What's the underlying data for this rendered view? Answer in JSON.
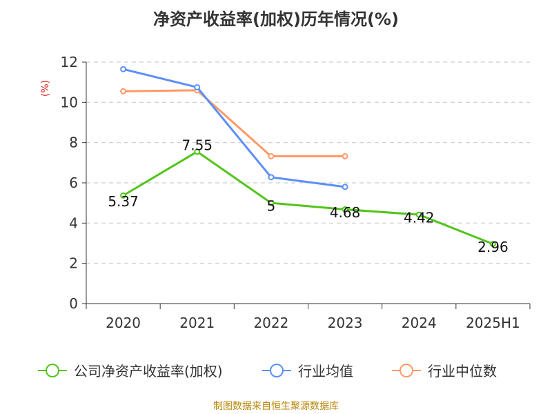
{
  "chart_data": {
    "type": "line",
    "title": "净资产收益率(加权)历年情况(%)",
    "ylabel": "(%)",
    "categories": [
      "2020",
      "2021",
      "2022",
      "2023",
      "2024",
      "2025H1"
    ],
    "ylim": [
      0,
      12
    ],
    "yticks": [
      0,
      2,
      4,
      6,
      8,
      10,
      12
    ],
    "grid": true,
    "legend_position": "bottom",
    "series": [
      {
        "name": "公司净资产收益率(加权)",
        "color": "#52c41a",
        "values": [
          5.37,
          7.55,
          5,
          4.68,
          4.42,
          2.96
        ],
        "labels": [
          "5.37",
          "7.55",
          "5",
          "4.68",
          "4.42",
          "2.96"
        ]
      },
      {
        "name": "行业均值",
        "color": "#5b8ff9",
        "values": [
          11.65,
          10.75,
          6.28,
          5.8,
          null,
          null
        ]
      },
      {
        "name": "行业中位数",
        "color": "#ff9966",
        "values": [
          10.55,
          10.6,
          7.32,
          7.32,
          null,
          null
        ]
      }
    ]
  },
  "source_text": "制图数据来自恒生聚源数据库"
}
